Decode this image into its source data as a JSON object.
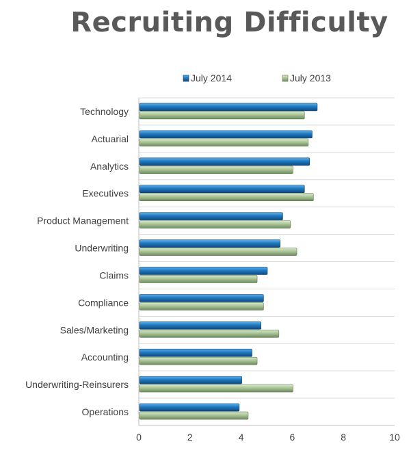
{
  "chart_data": {
    "type": "bar",
    "orientation": "horizontal",
    "title": "Recruiting Difficulty",
    "categories": [
      "Technology",
      "Actuarial",
      "Analytics",
      "Executives",
      "Product Management",
      "Underwriting",
      "Claims",
      "Compliance",
      "Sales/Marketing",
      "Accounting",
      "Underwriting-Reinsurers",
      "Operations"
    ],
    "series": [
      {
        "name": "July 2014",
        "color": "#1f6fb2",
        "values": [
          6.95,
          6.75,
          6.65,
          6.45,
          5.6,
          5.5,
          5.0,
          4.85,
          4.75,
          4.4,
          4.0,
          3.9
        ]
      },
      {
        "name": "July 2013",
        "color": "#9bb98a",
        "values": [
          6.45,
          6.6,
          6.0,
          6.8,
          5.9,
          6.15,
          4.6,
          4.85,
          5.45,
          4.6,
          6.0,
          4.25
        ]
      }
    ],
    "xlim": [
      0,
      10
    ],
    "xticks": [
      0,
      2,
      4,
      6,
      8,
      10
    ],
    "xlabel": "",
    "ylabel": "",
    "grid": true,
    "legend_position": "top"
  }
}
